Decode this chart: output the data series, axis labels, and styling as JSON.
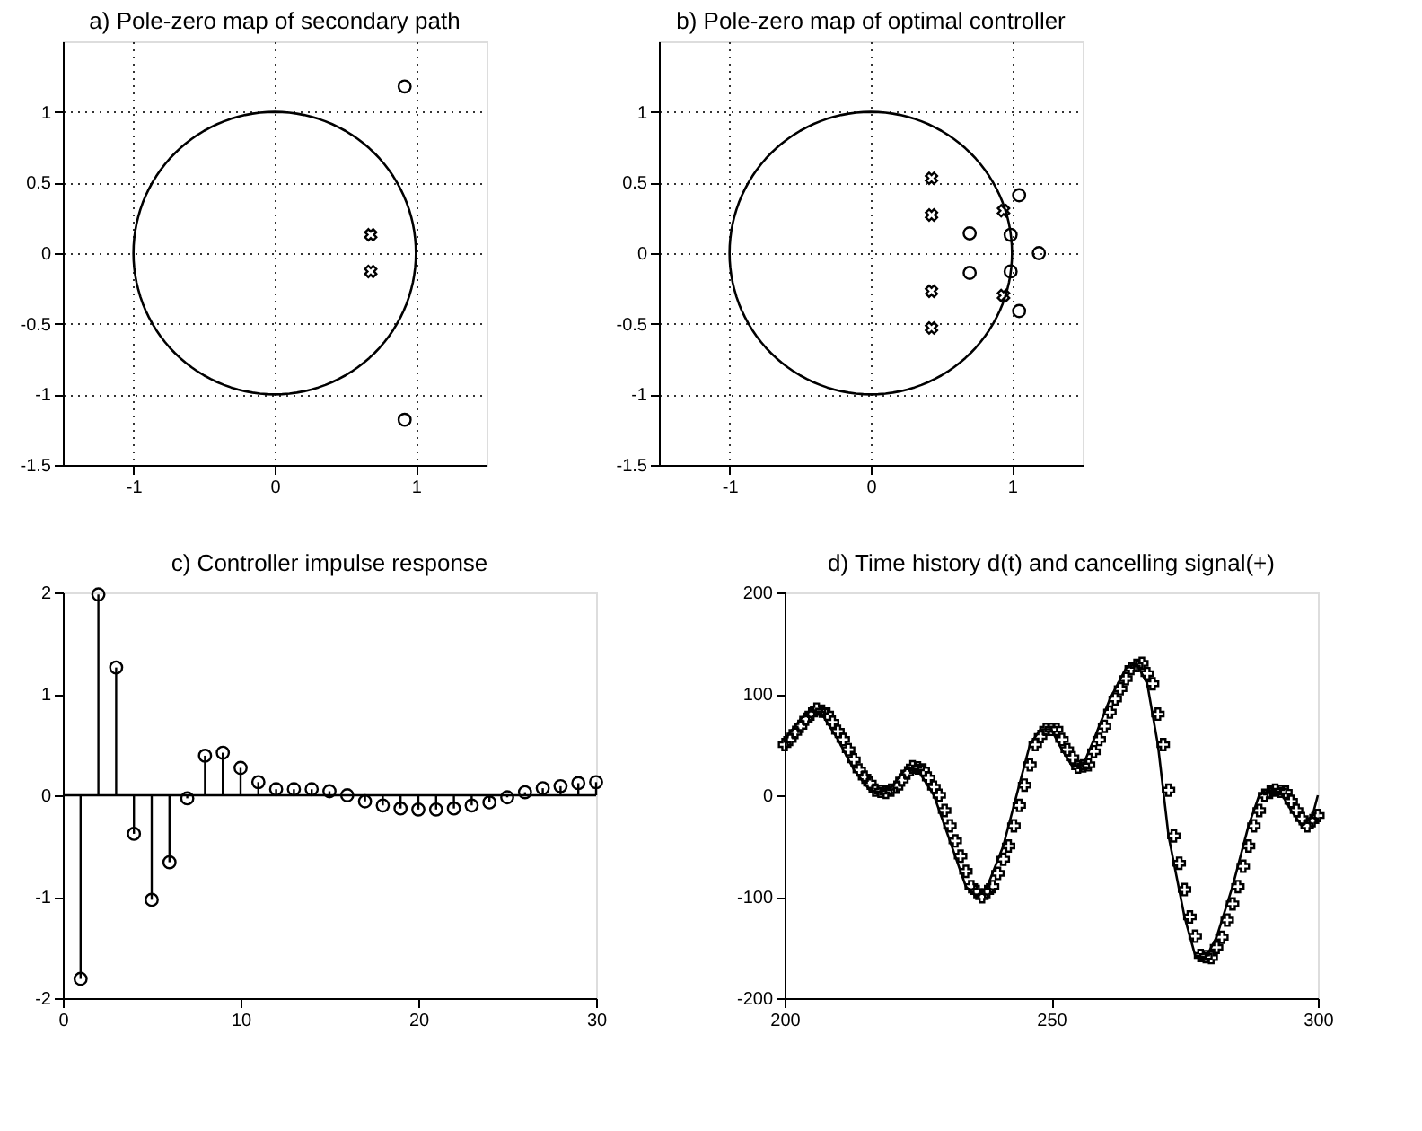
{
  "chart_data": [
    {
      "type": "scatter",
      "title": "a) Pole-zero map of secondary path",
      "xlim": [
        -1.5,
        1.5
      ],
      "ylim": [
        -1.5,
        1.5
      ],
      "xticks": [
        -1,
        0,
        1
      ],
      "yticks": [
        -1.5,
        -1,
        -0.5,
        0,
        0.5,
        1
      ],
      "grid": true,
      "series": [
        {
          "type": "scatter",
          "color": "#000000",
          "marker": "circle",
          "x": [
            0.92,
            0.92
          ],
          "values": [
            1.18,
            -1.18
          ]
        },
        {
          "type": "scatter",
          "color": "#000000",
          "marker": "x",
          "x": [
            0.68,
            0.68
          ],
          "values": [
            0.13,
            -0.13
          ]
        }
      ]
    },
    {
      "type": "scatter",
      "title": "b) Pole-zero map of optimal controller",
      "xlim": [
        -1.5,
        1.5
      ],
      "ylim": [
        -1.5,
        1.5
      ],
      "xticks": [
        -1,
        0,
        1
      ],
      "yticks": [
        -1.5,
        -1,
        -0.5,
        0,
        0.5,
        1
      ],
      "grid": true,
      "series": [
        {
          "type": "scatter",
          "color": "#000000",
          "marker": "circle",
          "x": [
            1.05,
            0.7,
            0.7,
            1.19,
            0.99,
            0.99,
            1.05
          ],
          "values": [
            0.41,
            0.14,
            -0.14,
            0,
            0.13,
            -0.13,
            -0.41
          ]
        },
        {
          "type": "scatter",
          "color": "#000000",
          "marker": "x",
          "x": [
            0.43,
            0.43,
            0.43,
            0.43,
            0.94,
            0.94
          ],
          "values": [
            0.53,
            0.27,
            -0.27,
            -0.53,
            0.3,
            -0.3
          ]
        }
      ]
    },
    {
      "type": "lollipop",
      "title": "c) Controller impulse response",
      "xlim": [
        0,
        30
      ],
      "ylim": [
        -2,
        2
      ],
      "xticks": [
        0,
        10,
        20,
        30
      ],
      "yticks": [
        -2,
        -1,
        0,
        1,
        2
      ],
      "marker": "circle",
      "x": [
        1,
        2,
        3,
        4,
        5,
        6,
        7,
        8,
        9,
        10,
        11,
        12,
        13,
        14,
        15,
        16,
        17,
        18,
        19,
        20,
        21,
        22,
        23,
        24,
        25,
        26,
        27,
        28,
        29,
        30
      ],
      "series": [
        {
          "color": "#000000",
          "values": [
            -1.81,
            1.98,
            1.26,
            -0.38,
            -1.03,
            -0.66,
            -0.03,
            0.39,
            0.42,
            0.27,
            0.13,
            0.06,
            0.06,
            0.06,
            0.04,
            0.0,
            -0.06,
            -0.1,
            -0.13,
            -0.14,
            -0.14,
            -0.13,
            -0.1,
            -0.07,
            -0.02,
            0.03,
            0.07,
            0.09,
            0.12,
            0.13
          ]
        }
      ]
    },
    {
      "type": "line",
      "title": "d) Time history d(t) and cancelling signal(+)",
      "xlim": [
        200,
        300
      ],
      "ylim": [
        -200,
        200
      ],
      "xticks": [
        200,
        250,
        300
      ],
      "yticks": [
        -200,
        -100,
        0,
        100,
        200
      ],
      "series": [
        {
          "type": "line",
          "color": "#000000",
          "line_style": "solid",
          "marker": "none",
          "x": [
            200,
            203,
            205,
            207,
            210,
            213,
            216,
            218,
            220,
            223,
            225,
            228,
            231,
            234,
            236,
            238,
            241,
            244,
            246,
            248,
            250,
            252,
            254,
            256,
            258,
            261,
            264,
            266,
            268,
            270,
            272,
            275,
            277,
            279,
            281,
            284,
            287,
            289,
            291,
            293,
            295,
            297,
            299,
            300
          ],
          "values": [
            55,
            75,
            85,
            80,
            55,
            25,
            5,
            3,
            8,
            28,
            25,
            0,
            -45,
            -90,
            -100,
            -90,
            -50,
            10,
            50,
            65,
            65,
            45,
            28,
            30,
            55,
            95,
            125,
            130,
            110,
            50,
            -40,
            -120,
            -158,
            -160,
            -140,
            -90,
            -30,
            0,
            5,
            3,
            -15,
            -30,
            -20,
            0
          ]
        },
        {
          "type": "scatter",
          "color": "#000000",
          "marker": "cross",
          "x": [
            200,
            201,
            202,
            203,
            204,
            205,
            206,
            207,
            208,
            209,
            210,
            211,
            212,
            213,
            214,
            215,
            216,
            217,
            218,
            219,
            220,
            221,
            222,
            223,
            224,
            225,
            226,
            227,
            228,
            229,
            230,
            231,
            232,
            233,
            234,
            235,
            236,
            237,
            238,
            239,
            240,
            241,
            242,
            243,
            244,
            245,
            246,
            247,
            248,
            249,
            250,
            251,
            252,
            253,
            254,
            255,
            256,
            257,
            258,
            259,
            260,
            261,
            262,
            263,
            264,
            265,
            266,
            267,
            268,
            269,
            270,
            271,
            272,
            273,
            274,
            275,
            276,
            277,
            278,
            279,
            280,
            281,
            282,
            283,
            284,
            285,
            286,
            287,
            288,
            289,
            290,
            291,
            292,
            293,
            294,
            295,
            296,
            297,
            298,
            299,
            300
          ],
          "values": [
            50,
            55,
            62,
            68,
            75,
            80,
            85,
            83,
            80,
            72,
            63,
            55,
            45,
            35,
            25,
            18,
            12,
            5,
            4,
            3,
            5,
            8,
            15,
            22,
            28,
            27,
            25,
            17,
            8,
            0,
            -15,
            -30,
            -45,
            -60,
            -75,
            -90,
            -95,
            -100,
            -95,
            -90,
            -77,
            -63,
            -50,
            -30,
            -10,
            10,
            30,
            50,
            58,
            65,
            65,
            65,
            55,
            45,
            37,
            28,
            29,
            30,
            43,
            55,
            68,
            82,
            95,
            105,
            115,
            125,
            128,
            130,
            120,
            110,
            80,
            50,
            5,
            -40,
            -67,
            -93,
            -120,
            -139,
            -158,
            -159,
            -160,
            -150,
            -140,
            -123,
            -107,
            -90,
            -70,
            -50,
            -30,
            -15,
            0,
            3,
            5,
            4,
            3,
            -6,
            -15,
            -23,
            -30,
            -25,
            -20
          ]
        }
      ]
    }
  ]
}
